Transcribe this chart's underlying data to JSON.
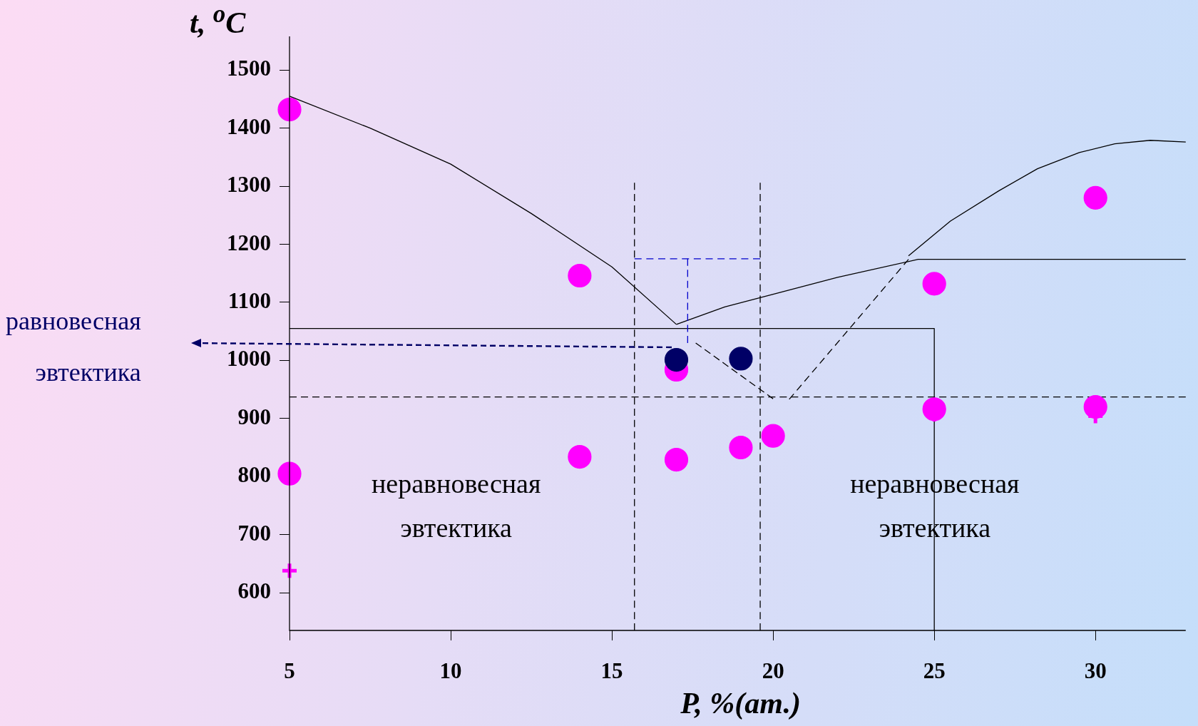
{
  "chart_data": {
    "type": "scatter",
    "xlabel": "P, %(ат.)",
    "ylabel": "t, $^{o}$C",
    "xlim": [
      5,
      32.8
    ],
    "ylim": [
      535,
      1558
    ],
    "xticks": [
      5,
      10,
      15,
      20,
      25,
      30
    ],
    "yticks": [
      600,
      700,
      800,
      900,
      1000,
      1100,
      1200,
      1300,
      1400,
      1500
    ],
    "grid": false,
    "legend": false,
    "annotations": [
      "равновесная эвтектика",
      "неравновесная эвтектика",
      "неравновесная эвтектика"
    ],
    "series": [
      {
        "type": "line",
        "color": "#000000",
        "marker": "none",
        "line_style": "solid",
        "x": [
          5,
          7.5,
          10,
          12.5,
          15,
          17
        ],
        "values": [
          1455,
          1400,
          1338,
          1253,
          1161,
          1062
        ]
      },
      {
        "type": "line",
        "color": "#000000",
        "marker": "none",
        "line_style": "solid",
        "x": [
          17,
          18.5,
          20,
          22,
          24.5,
          32.8
        ],
        "values": [
          1062,
          1092,
          1114,
          1143,
          1174,
          1174
        ]
      },
      {
        "type": "line",
        "color": "#000000",
        "marker": "none",
        "line_style": "solid",
        "x": [
          24.2,
          25.5,
          27,
          28.2,
          29.5,
          30.6,
          31.7,
          32.8
        ],
        "values": [
          1180,
          1240,
          1292,
          1330,
          1358,
          1373,
          1379,
          1376
        ]
      },
      {
        "type": "line",
        "color": "#000000",
        "marker": "none",
        "line_style": "solid",
        "x": [
          5,
          25,
          25
        ],
        "values": [
          1055,
          1055,
          535
        ]
      },
      {
        "type": "line",
        "color": "#000000",
        "marker": "none",
        "line_style": "dashed",
        "x": [
          5,
          32.8
        ],
        "values": [
          937,
          937
        ]
      },
      {
        "type": "line",
        "color": "#000000",
        "marker": "none",
        "line_style": "dashed",
        "x": [
          17.6,
          20
        ],
        "values": [
          1030,
          934
        ]
      },
      {
        "type": "line",
        "color": "#000000",
        "marker": "none",
        "line_style": "dashed",
        "x": [
          20.5,
          24.2
        ],
        "values": [
          933,
          1174
        ]
      },
      {
        "type": "line",
        "color": "#000000",
        "marker": "none",
        "line_style": "dashed",
        "x": [
          15.7,
          15.7
        ],
        "values": [
          1306,
          535
        ]
      },
      {
        "type": "line",
        "color": "#000000",
        "marker": "none",
        "line_style": "dashed",
        "x": [
          19.6,
          19.6
        ],
        "values": [
          1306,
          535
        ]
      },
      {
        "type": "line",
        "color": "#0000cc",
        "marker": "none",
        "line_style": "dashed",
        "x": [
          15.7,
          19.6
        ],
        "values": [
          1175,
          1175
        ]
      },
      {
        "type": "line",
        "color": "#0000cc",
        "marker": "none",
        "line_style": "dashed",
        "x": [
          17.35,
          17.35
        ],
        "values": [
          1175,
          1030
        ]
      },
      {
        "type": "scatter",
        "color": "#ff00ff",
        "marker": "circle",
        "x": [
          5,
          14,
          17,
          25,
          30
        ],
        "values": [
          1432,
          1146,
          984,
          1132,
          1280
        ]
      },
      {
        "type": "scatter",
        "color": "#ff00ff",
        "marker": "circle",
        "x": [
          5,
          14,
          17,
          19,
          20,
          25,
          30
        ],
        "values": [
          805,
          834,
          829,
          850,
          870,
          916,
          920
        ]
      },
      {
        "type": "scatter",
        "color": "#ff00ff",
        "marker": "cross",
        "x": [
          5,
          25,
          30
        ],
        "values": [
          638,
          907,
          904
        ]
      },
      {
        "type": "scatter",
        "color": "#000066",
        "marker": "circle",
        "x": [
          17,
          19
        ],
        "values": [
          1001,
          1003
        ]
      }
    ]
  }
}
